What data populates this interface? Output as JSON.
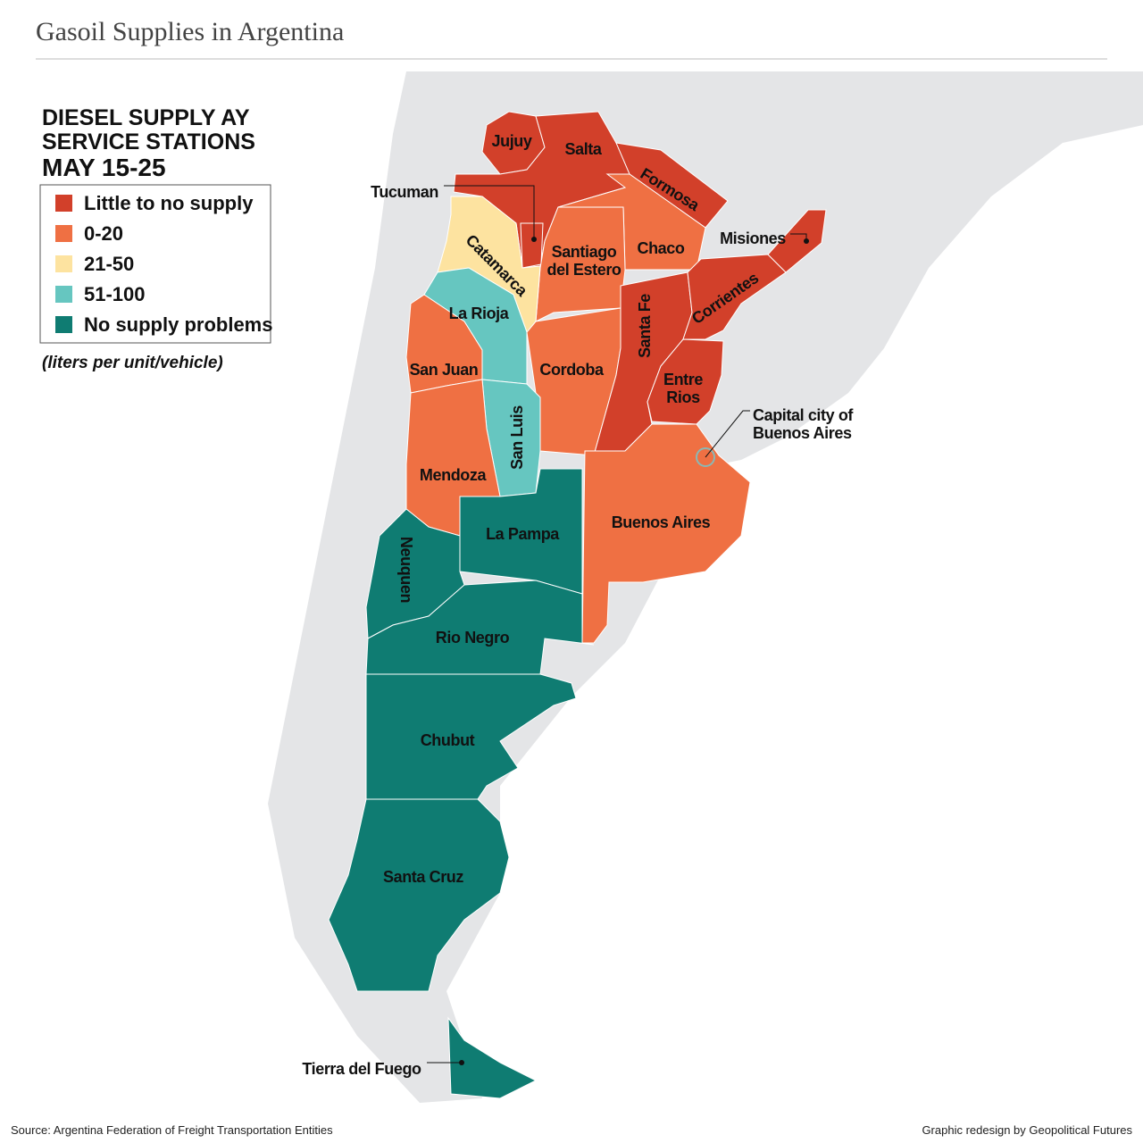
{
  "header": {
    "title": "Gasoil Supplies in Argentina"
  },
  "legend": {
    "title": [
      "DIESEL SUPPLY AY",
      "SERVICE STATIONS",
      "MAY 15-25"
    ],
    "items": [
      {
        "label": "Little to no supply",
        "color": "#d2402a"
      },
      {
        "label": "0-20",
        "color": "#ef7043"
      },
      {
        "label": "21-50",
        "color": "#fde3a0"
      },
      {
        "label": "51-100",
        "color": "#66c6c0"
      },
      {
        "label": "No supply problems",
        "color": "#0f7c72"
      }
    ],
    "note": "(liters per unit/vehicle)"
  },
  "regions": [
    {
      "name": [
        "Jujuy"
      ],
      "color": "#d2402a"
    },
    {
      "name": [
        "Salta"
      ],
      "color": "#d2402a"
    },
    {
      "name": [
        "Tucuman"
      ],
      "color": "#d2402a"
    },
    {
      "name": [
        "Formosa"
      ],
      "color": "#d2402a"
    },
    {
      "name": [
        "Chaco"
      ],
      "color": "#ef7043"
    },
    {
      "name": [
        "Santiago",
        "del Estero"
      ],
      "color": "#ef7043"
    },
    {
      "name": [
        "Catamarca"
      ],
      "color": "#fde3a0"
    },
    {
      "name": [
        "La Rioja"
      ],
      "color": "#66c6c0"
    },
    {
      "name": [
        "San Juan"
      ],
      "color": "#ef7043"
    },
    {
      "name": [
        "Cordoba"
      ],
      "color": "#ef7043"
    },
    {
      "name": [
        "San Luis"
      ],
      "color": "#66c6c0"
    },
    {
      "name": [
        "Mendoza"
      ],
      "color": "#ef7043"
    },
    {
      "name": [
        "Santa Fe"
      ],
      "color": "#d2402a"
    },
    {
      "name": [
        "Corrientes"
      ],
      "color": "#d2402a"
    },
    {
      "name": [
        "Misiones"
      ],
      "color": "#d2402a"
    },
    {
      "name": [
        "Entre",
        "Rios"
      ],
      "color": "#d2402a"
    },
    {
      "name": [
        "Buenos Aires"
      ],
      "color": "#ef7043"
    },
    {
      "name": [
        "La Pampa"
      ],
      "color": "#0f7c72"
    },
    {
      "name": [
        "Neuquen"
      ],
      "color": "#0f7c72"
    },
    {
      "name": [
        "Rio Negro"
      ],
      "color": "#0f7c72"
    },
    {
      "name": [
        "Chubut"
      ],
      "color": "#0f7c72"
    },
    {
      "name": [
        "Santa Cruz"
      ],
      "color": "#0f7c72"
    },
    {
      "name": [
        "Tierra del Fuego"
      ],
      "color": "#0f7c72"
    }
  ],
  "callouts": [
    {
      "label": [
        "Capital city of",
        "Buenos Aires"
      ]
    }
  ],
  "footer": {
    "source": "Source: Argentina Federation of Freight Transportation Entities",
    "credit": "Graphic redesign by Geopolitical Futures"
  }
}
